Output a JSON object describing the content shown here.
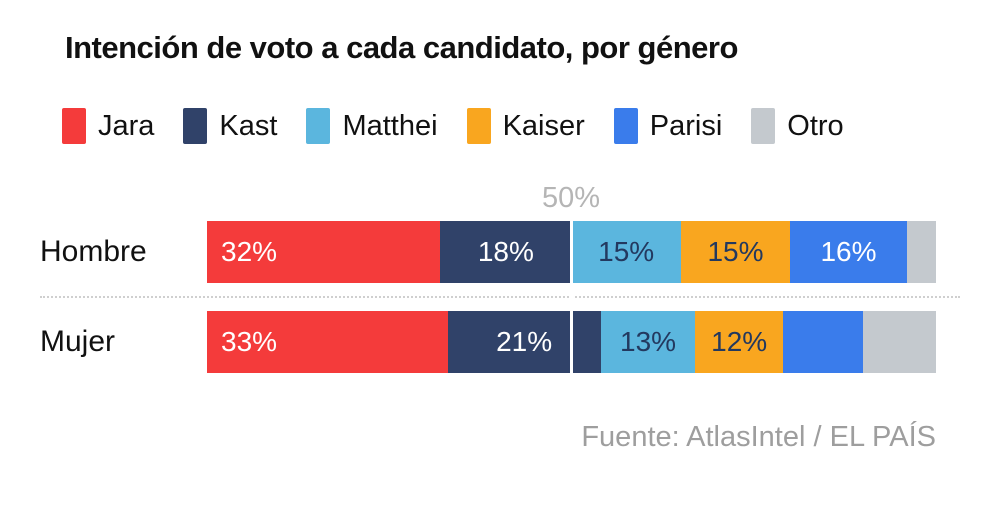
{
  "title": "Intención de voto a cada candidato, por género",
  "legend": {
    "items": [
      {
        "label": "Jara",
        "color": "#f43b3b"
      },
      {
        "label": "Kast",
        "color": "#304269"
      },
      {
        "label": "Matthei",
        "color": "#5bb6de"
      },
      {
        "label": "Kaiser",
        "color": "#f9a61f"
      },
      {
        "label": "Parisi",
        "color": "#3a7ceb"
      },
      {
        "label": "Otro",
        "color": "#c4c9ce"
      }
    ]
  },
  "axis": {
    "gridline_label": "50%",
    "gridline_color": "#ffffff"
  },
  "footer": {
    "source": "Fuente: AtlasIntel / EL PAÍS"
  },
  "chart_data": {
    "type": "bar",
    "stacked": true,
    "orientation": "horizontal",
    "title": "Intención de voto a cada candidato, por género",
    "categories": [
      "Hombre",
      "Mujer"
    ],
    "series": [
      {
        "name": "Jara",
        "color": "#f43b3b",
        "text_color": "#ffffff",
        "values": [
          32,
          33
        ]
      },
      {
        "name": "Kast",
        "color": "#304269",
        "text_color": "#ffffff",
        "values": [
          18,
          21
        ]
      },
      {
        "name": "Matthei",
        "color": "#5bb6de",
        "text_color": "#23395f",
        "values": [
          15,
          13
        ]
      },
      {
        "name": "Kaiser",
        "color": "#f9a61f",
        "text_color": "#23395f",
        "values": [
          15,
          12
        ]
      },
      {
        "name": "Parisi",
        "color": "#3a7ceb",
        "text_color": "#ffffff",
        "values": [
          16,
          11
        ]
      },
      {
        "name": "Otro",
        "color": "#c4c9ce",
        "text_color": "#23395f",
        "values": [
          4,
          10
        ]
      }
    ],
    "value_labels": [
      [
        "32%",
        "18%",
        "15%",
        "15%",
        "16%",
        ""
      ],
      [
        "33%",
        "21%",
        "13%",
        "12%",
        "",
        ""
      ]
    ],
    "xlim": [
      0,
      100
    ],
    "gridline_at": 50,
    "grid": "single-vertical-rule-at-50",
    "legend_position": "top",
    "source": "Fuente: AtlasIntel / EL PAÍS"
  }
}
